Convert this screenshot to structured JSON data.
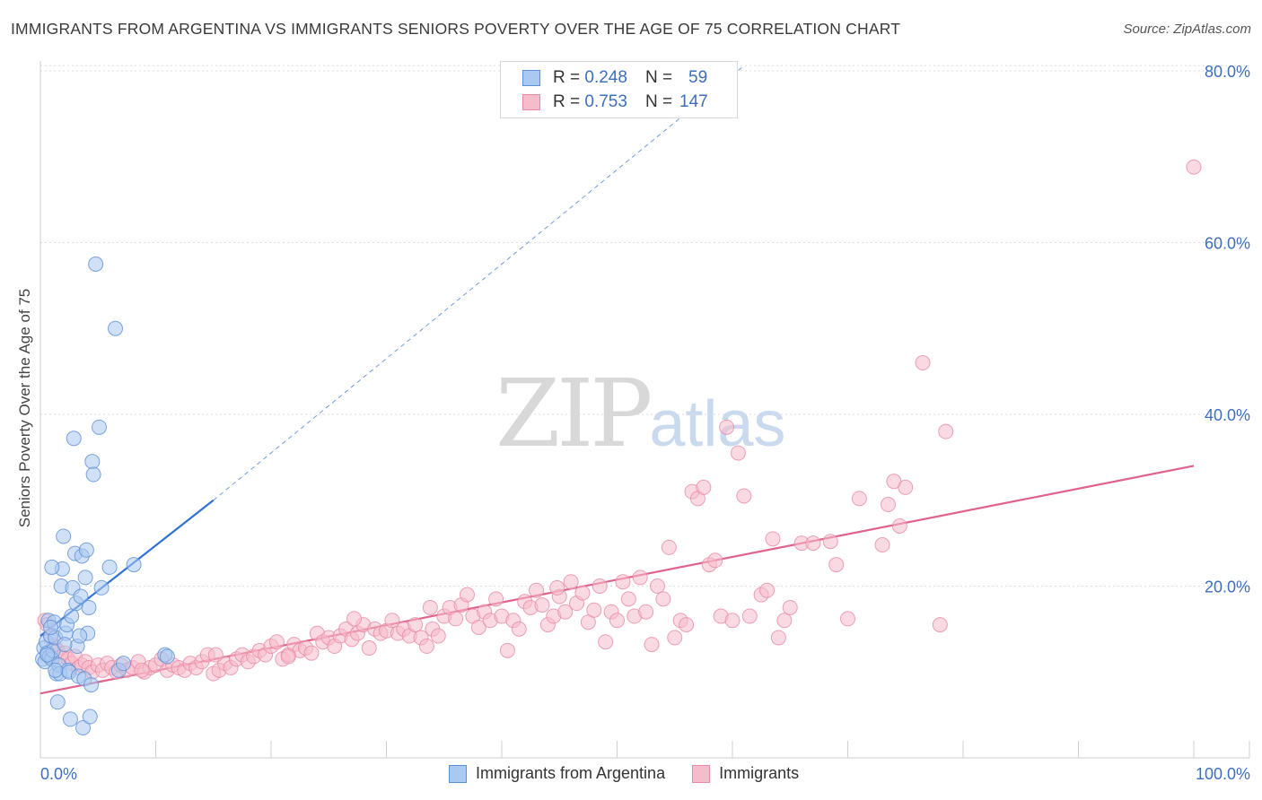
{
  "title": "IMMIGRANTS FROM ARGENTINA VS IMMIGRANTS SENIORS POVERTY OVER THE AGE OF 75 CORRELATION CHART",
  "source": "Source: ZipAtlas.com",
  "watermark": {
    "zip": "ZIP",
    "atlas": "atlas"
  },
  "legend": {
    "rows": [
      {
        "r_label": "R =",
        "r_value": "0.248",
        "n_label": "N =",
        "n_value": "59"
      },
      {
        "r_label": "R =",
        "r_value": "0.753",
        "n_label": "N =",
        "n_value": "147"
      }
    ]
  },
  "colors": {
    "series1_fill": "#a9c9f0",
    "series1_stroke": "#5b8fd6",
    "series1_line": "#2f72d4",
    "series2_fill": "#f5bccb",
    "series2_stroke": "#e88aa6",
    "series2_line": "#e0628c",
    "axis_text": "#3d6fbf",
    "grid": "#dddddd"
  },
  "chart_data": {
    "type": "scatter",
    "title": "IMMIGRANTS FROM ARGENTINA VS IMMIGRANTS SENIORS POVERTY OVER THE AGE OF 75 CORRELATION CHART",
    "xlabel": "",
    "ylabel": "Seniors Poverty Over the Age of 75",
    "xlim": [
      0,
      100
    ],
    "ylim": [
      0,
      82
    ],
    "x_tick_labels": [
      "0.0%",
      "100.0%"
    ],
    "y_ticks": [
      20,
      40,
      60,
      80
    ],
    "y_tick_labels": [
      "20.0%",
      "40.0%",
      "60.0%",
      "80.0%"
    ],
    "grid": true,
    "legend_position": "bottom",
    "series": [
      {
        "name": "Immigrants from Argentina",
        "regression": {
          "x0": 0,
          "y0": 14.2,
          "x1": 15,
          "y1": 30,
          "extend_to_x": 61,
          "extend_to_y": 80.6
        },
        "points": [
          [
            0.2,
            11.5
          ],
          [
            0.3,
            12.8
          ],
          [
            0.4,
            11.2
          ],
          [
            0.5,
            13.5
          ],
          [
            0.6,
            12.2
          ],
          [
            0.7,
            16.0
          ],
          [
            0.8,
            11.8
          ],
          [
            0.9,
            14.2
          ],
          [
            1.0,
            11.5
          ],
          [
            1.1,
            12.5
          ],
          [
            1.2,
            15.8
          ],
          [
            1.3,
            14.0
          ],
          [
            1.4,
            9.8
          ],
          [
            1.5,
            6.5
          ],
          [
            1.6,
            10.8
          ],
          [
            1.7,
            9.8
          ],
          [
            1.8,
            20.0
          ],
          [
            1.9,
            22.0
          ],
          [
            2.0,
            25.8
          ],
          [
            2.2,
            14.5
          ],
          [
            2.3,
            15.5
          ],
          [
            2.4,
            10.2
          ],
          [
            2.5,
            10.0
          ],
          [
            2.6,
            4.5
          ],
          [
            2.7,
            16.5
          ],
          [
            2.8,
            19.8
          ],
          [
            2.9,
            37.2
          ],
          [
            3.0,
            23.8
          ],
          [
            3.1,
            18.0
          ],
          [
            3.2,
            13.0
          ],
          [
            3.3,
            9.5
          ],
          [
            3.5,
            18.8
          ],
          [
            3.6,
            23.5
          ],
          [
            3.7,
            3.5
          ],
          [
            3.8,
            9.2
          ],
          [
            3.9,
            21.0
          ],
          [
            4.0,
            24.2
          ],
          [
            4.1,
            14.5
          ],
          [
            4.2,
            17.5
          ],
          [
            4.3,
            4.8
          ],
          [
            4.4,
            8.5
          ],
          [
            4.5,
            34.5
          ],
          [
            4.6,
            33.0
          ],
          [
            4.8,
            57.5
          ],
          [
            5.1,
            38.5
          ],
          [
            5.3,
            19.8
          ],
          [
            6.0,
            22.2
          ],
          [
            6.5,
            50.0
          ],
          [
            6.8,
            10.2
          ],
          [
            7.2,
            11.0
          ],
          [
            8.1,
            22.5
          ],
          [
            10.8,
            12.0
          ],
          [
            11.0,
            11.8
          ],
          [
            1.0,
            22.2
          ],
          [
            0.6,
            12.0
          ],
          [
            1.3,
            10.2
          ],
          [
            2.1,
            13.2
          ],
          [
            0.9,
            15.2
          ],
          [
            3.4,
            14.2
          ]
        ]
      },
      {
        "name": "Immigrants",
        "regression": {
          "x0": 0,
          "y0": 7.5,
          "x1": 100,
          "y1": 34.0
        },
        "points": [
          [
            0.4,
            16.0
          ],
          [
            0.6,
            15.5
          ],
          [
            0.9,
            14.0
          ],
          [
            1.2,
            13.0
          ],
          [
            1.5,
            12.5
          ],
          [
            1.8,
            11.8
          ],
          [
            2.1,
            12.2
          ],
          [
            2.4,
            11.5
          ],
          [
            2.7,
            11.0
          ],
          [
            3.0,
            11.8
          ],
          [
            3.3,
            10.5
          ],
          [
            3.6,
            10.8
          ],
          [
            3.9,
            11.2
          ],
          [
            4.2,
            10.5
          ],
          [
            4.5,
            10.0
          ],
          [
            5.0,
            10.8
          ],
          [
            5.4,
            10.2
          ],
          [
            5.8,
            11.0
          ],
          [
            6.2,
            10.5
          ],
          [
            6.6,
            10.0
          ],
          [
            7.0,
            10.8
          ],
          [
            7.5,
            10.2
          ],
          [
            8.0,
            10.5
          ],
          [
            8.5,
            11.2
          ],
          [
            9.0,
            10.0
          ],
          [
            9.5,
            10.5
          ],
          [
            10.0,
            10.8
          ],
          [
            10.5,
            11.5
          ],
          [
            11.0,
            10.2
          ],
          [
            11.5,
            10.8
          ],
          [
            12.0,
            10.5
          ],
          [
            12.5,
            10.2
          ],
          [
            13.0,
            11.0
          ],
          [
            13.5,
            10.5
          ],
          [
            14.0,
            11.2
          ],
          [
            14.5,
            12.0
          ],
          [
            15.0,
            9.8
          ],
          [
            15.5,
            10.2
          ],
          [
            16.0,
            11.0
          ],
          [
            16.5,
            10.5
          ],
          [
            17.0,
            11.5
          ],
          [
            17.5,
            12.0
          ],
          [
            18.0,
            11.2
          ],
          [
            18.5,
            11.8
          ],
          [
            19.0,
            12.5
          ],
          [
            19.5,
            12.0
          ],
          [
            20.0,
            13.0
          ],
          [
            20.5,
            13.5
          ],
          [
            21.0,
            11.5
          ],
          [
            21.5,
            12.0
          ],
          [
            22.0,
            13.2
          ],
          [
            22.5,
            12.5
          ],
          [
            23.0,
            12.8
          ],
          [
            23.5,
            12.2
          ],
          [
            24.0,
            14.5
          ],
          [
            24.5,
            13.5
          ],
          [
            25.0,
            14.0
          ],
          [
            25.5,
            13.0
          ],
          [
            26.0,
            14.2
          ],
          [
            26.5,
            15.0
          ],
          [
            27.0,
            13.8
          ],
          [
            27.5,
            14.5
          ],
          [
            28.0,
            15.5
          ],
          [
            28.5,
            12.8
          ],
          [
            29.0,
            15.0
          ],
          [
            29.5,
            14.5
          ],
          [
            30.0,
            14.8
          ],
          [
            30.5,
            16.0
          ],
          [
            31.0,
            14.5
          ],
          [
            31.5,
            15.0
          ],
          [
            32.0,
            14.2
          ],
          [
            32.5,
            15.5
          ],
          [
            33.0,
            14.0
          ],
          [
            33.5,
            13.0
          ],
          [
            34.0,
            15.0
          ],
          [
            34.5,
            14.2
          ],
          [
            35.0,
            16.5
          ],
          [
            35.5,
            17.5
          ],
          [
            36.0,
            16.2
          ],
          [
            36.5,
            17.8
          ],
          [
            37.0,
            19.0
          ],
          [
            37.5,
            16.5
          ],
          [
            38.0,
            15.2
          ],
          [
            38.5,
            17.0
          ],
          [
            39.0,
            16.0
          ],
          [
            39.5,
            18.5
          ],
          [
            40.0,
            16.5
          ],
          [
            40.5,
            12.5
          ],
          [
            41.0,
            16.0
          ],
          [
            41.5,
            15.0
          ],
          [
            42.0,
            18.2
          ],
          [
            42.5,
            17.5
          ],
          [
            43.0,
            19.5
          ],
          [
            43.5,
            17.8
          ],
          [
            44.0,
            15.5
          ],
          [
            44.5,
            16.5
          ],
          [
            45.0,
            18.8
          ],
          [
            45.5,
            17.0
          ],
          [
            46.0,
            20.5
          ],
          [
            46.5,
            18.0
          ],
          [
            47.0,
            19.2
          ],
          [
            47.5,
            15.8
          ],
          [
            48.0,
            17.2
          ],
          [
            48.5,
            20.0
          ],
          [
            49.0,
            13.5
          ],
          [
            49.5,
            17.0
          ],
          [
            50.0,
            16.0
          ],
          [
            50.5,
            20.5
          ],
          [
            51.0,
            18.5
          ],
          [
            51.5,
            16.5
          ],
          [
            52.0,
            21.0
          ],
          [
            52.5,
            17.0
          ],
          [
            53.0,
            13.2
          ],
          [
            53.5,
            20.0
          ],
          [
            54.0,
            18.5
          ],
          [
            54.5,
            24.5
          ],
          [
            55.0,
            14.0
          ],
          [
            55.5,
            16.0
          ],
          [
            56.0,
            15.5
          ],
          [
            56.5,
            31.0
          ],
          [
            57.0,
            30.2
          ],
          [
            57.5,
            31.5
          ],
          [
            58.0,
            22.5
          ],
          [
            58.5,
            23.0
          ],
          [
            59.0,
            16.5
          ],
          [
            59.5,
            38.5
          ],
          [
            60.0,
            16.0
          ],
          [
            60.5,
            35.5
          ],
          [
            61.0,
            30.5
          ],
          [
            61.5,
            16.5
          ],
          [
            62.5,
            19.0
          ],
          [
            63.0,
            19.5
          ],
          [
            63.5,
            25.5
          ],
          [
            64.0,
            14.0
          ],
          [
            64.5,
            16.0
          ],
          [
            65.0,
            17.5
          ],
          [
            66.0,
            25.0
          ],
          [
            67.0,
            25.0
          ],
          [
            68.5,
            25.2
          ],
          [
            69.0,
            22.5
          ],
          [
            70.0,
            16.2
          ],
          [
            71.0,
            30.2
          ],
          [
            73.0,
            24.8
          ],
          [
            73.5,
            29.5
          ],
          [
            74.0,
            32.2
          ],
          [
            74.5,
            27.0
          ],
          [
            75.0,
            31.5
          ],
          [
            76.5,
            46.0
          ],
          [
            78.0,
            15.5
          ],
          [
            78.5,
            38.0
          ],
          [
            100.0,
            68.8
          ],
          [
            21.5,
            11.8
          ],
          [
            15.2,
            12.0
          ],
          [
            8.8,
            10.2
          ],
          [
            27.2,
            16.2
          ],
          [
            33.8,
            17.5
          ],
          [
            44.8,
            19.8
          ]
        ]
      }
    ]
  },
  "bottom_legend": [
    "Immigrants from Argentina",
    "Immigrants"
  ]
}
